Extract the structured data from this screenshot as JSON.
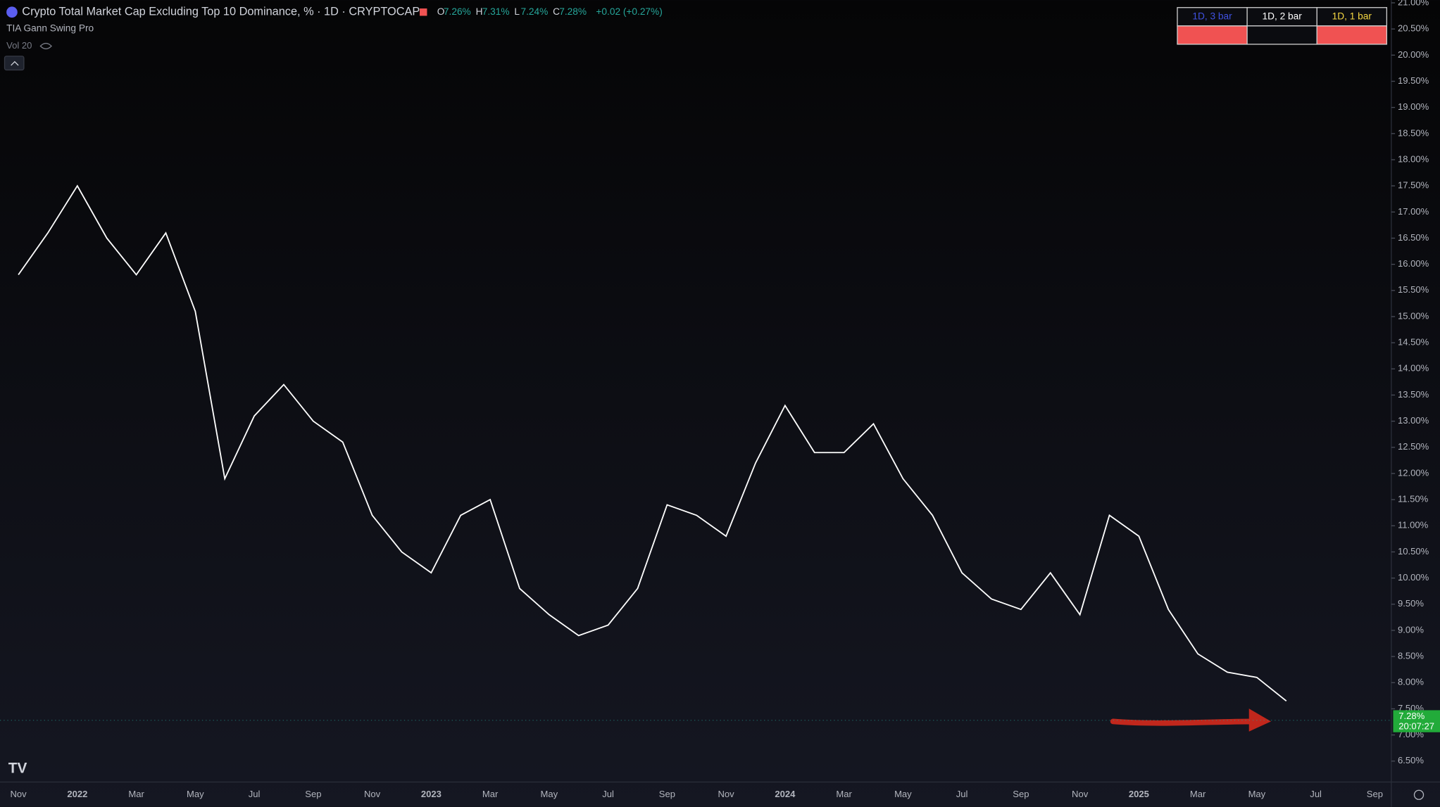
{
  "chart_data": {
    "type": "line",
    "title": "Crypto Total Market Cap Excluding Top 10 Dominance, % · 1D · CRYPTOCAP",
    "ohlc": [
      {
        "key": "O",
        "text": "7.26%"
      },
      {
        "key": "H",
        "text": "7.31%"
      },
      {
        "key": "L",
        "text": "7.24%"
      },
      {
        "key": "C",
        "text": "7.28%"
      }
    ],
    "change": "+0.02 (+0.27%)",
    "indicators": [
      "TIA Gann Swing Pro",
      "Vol 20"
    ],
    "status_table": [
      {
        "label": "1D, 3 bar",
        "label_color": "#3f51e0",
        "color": "#f05252"
      },
      {
        "label": "1D, 2 bar",
        "label_color": "#ffffff",
        "color": "#0b0c10"
      },
      {
        "label": "1D, 1 bar",
        "label_color": "#f5d742",
        "color": "#f05252"
      }
    ],
    "categories": [
      "Nov",
      null,
      "2022",
      null,
      "Mar",
      null,
      "May",
      null,
      "Jul",
      null,
      "Sep",
      null,
      "Nov",
      null,
      "2023",
      null,
      "Mar",
      null,
      "May",
      null,
      "Jul",
      null,
      "Sep",
      null,
      "Nov",
      null,
      "2024",
      null,
      "Mar",
      null,
      "May",
      null,
      "Jul",
      null,
      "Sep",
      null,
      "Nov",
      null,
      "2025",
      null,
      "Mar",
      null,
      "May",
      null,
      "Jul",
      null,
      "Sep"
    ],
    "series": [
      {
        "name": "Dominance",
        "color": "#ffffff",
        "values": [
          15.8,
          16.6,
          17.5,
          16.5,
          15.8,
          16.6,
          15.1,
          11.9,
          13.1,
          13.7,
          13.0,
          12.6,
          11.2,
          10.5,
          10.1,
          11.2,
          11.5,
          9.8,
          9.3,
          8.9,
          9.1,
          9.8,
          11.4,
          11.2,
          10.8,
          12.2,
          13.3,
          12.4,
          12.4,
          12.95,
          11.9,
          11.2,
          10.1,
          9.6,
          9.4,
          10.1,
          9.3,
          11.2,
          10.8,
          9.4,
          8.55,
          8.2,
          8.1,
          7.65,
          null,
          null,
          null
        ]
      }
    ],
    "last_value": 7.28,
    "last_value_label": "7.28%",
    "timer": "20:07:27",
    "ylim": [
      6.1,
      21.05
    ],
    "yticks": [
      {
        "value": 6.5,
        "label": "6.50%"
      },
      {
        "value": 7.0,
        "label": "7.00%"
      },
      {
        "value": 7.5,
        "label": "7.50%"
      },
      {
        "value": 8.0,
        "label": "8.00%"
      },
      {
        "value": 8.5,
        "label": "8.50%"
      },
      {
        "value": 9.0,
        "label": "9.00%"
      },
      {
        "value": 9.5,
        "label": "9.50%"
      },
      {
        "value": 10.0,
        "label": "10.00%"
      },
      {
        "value": 10.5,
        "label": "10.50%"
      },
      {
        "value": 11.0,
        "label": "11.00%"
      },
      {
        "value": 11.5,
        "label": "11.50%"
      },
      {
        "value": 12.0,
        "label": "12.00%"
      },
      {
        "value": 12.5,
        "label": "12.50%"
      },
      {
        "value": 13.0,
        "label": "13.00%"
      },
      {
        "value": 13.5,
        "label": "13.50%"
      },
      {
        "value": 14.0,
        "label": "14.00%"
      },
      {
        "value": 14.5,
        "label": "14.50%"
      },
      {
        "value": 15.0,
        "label": "15.00%"
      },
      {
        "value": 15.5,
        "label": "15.50%"
      },
      {
        "value": 16.0,
        "label": "16.00%"
      },
      {
        "value": 16.5,
        "label": "16.50%"
      },
      {
        "value": 17.0,
        "label": "17.00%"
      },
      {
        "value": 17.5,
        "label": "17.50%"
      },
      {
        "value": 18.0,
        "label": "18.00%"
      },
      {
        "value": 18.5,
        "label": "18.50%"
      },
      {
        "value": 19.0,
        "label": "19.00%"
      },
      {
        "value": 19.5,
        "label": "19.50%"
      },
      {
        "value": 20.0,
        "label": "20.00%"
      },
      {
        "value": 20.5,
        "label": "20.50%"
      },
      {
        "value": 21.0,
        "label": "21.00%"
      }
    ],
    "grid": false
  }
}
